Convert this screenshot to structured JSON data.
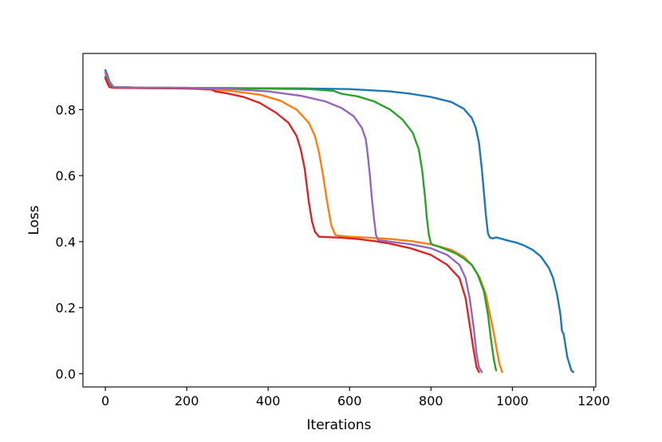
{
  "chart_data": {
    "type": "line",
    "title": "",
    "xlabel": "Iterations",
    "ylabel": "Loss",
    "xlim": [
      -55,
      1205
    ],
    "ylim": [
      -0.04,
      0.97
    ],
    "xticks": [
      0,
      200,
      400,
      600,
      800,
      1000,
      1200
    ],
    "yticks": [
      0.0,
      0.2,
      0.4,
      0.6,
      0.8
    ],
    "xtick_labels": [
      "0",
      "200",
      "400",
      "600",
      "800",
      "1000",
      "1200"
    ],
    "ytick_labels": [
      "0.0",
      "0.2",
      "0.4",
      "0.6",
      "0.8"
    ],
    "grid": false,
    "legend": "none",
    "series": [
      {
        "color": "#1f77b4",
        "points": [
          [
            0,
            0.92
          ],
          [
            5,
            0.905
          ],
          [
            10,
            0.885
          ],
          [
            20,
            0.868
          ],
          [
            100,
            0.866
          ],
          [
            300,
            0.865
          ],
          [
            500,
            0.864
          ],
          [
            600,
            0.862
          ],
          [
            700,
            0.855
          ],
          [
            750,
            0.848
          ],
          [
            800,
            0.838
          ],
          [
            850,
            0.823
          ],
          [
            880,
            0.803
          ],
          [
            900,
            0.775
          ],
          [
            910,
            0.745
          ],
          [
            918,
            0.7
          ],
          [
            925,
            0.62
          ],
          [
            930,
            0.55
          ],
          [
            935,
            0.48
          ],
          [
            940,
            0.425
          ],
          [
            945,
            0.412
          ],
          [
            952,
            0.41
          ],
          [
            960,
            0.413
          ],
          [
            970,
            0.41
          ],
          [
            990,
            0.403
          ],
          [
            1010,
            0.397
          ],
          [
            1030,
            0.388
          ],
          [
            1050,
            0.375
          ],
          [
            1070,
            0.355
          ],
          [
            1090,
            0.32
          ],
          [
            1100,
            0.29
          ],
          [
            1110,
            0.24
          ],
          [
            1118,
            0.18
          ],
          [
            1122,
            0.13
          ],
          [
            1126,
            0.12
          ],
          [
            1130,
            0.09
          ],
          [
            1135,
            0.05
          ],
          [
            1140,
            0.03
          ],
          [
            1145,
            0.01
          ],
          [
            1150,
            0.005
          ]
        ]
      },
      {
        "color": "#ff7f0e",
        "points": [
          [
            0,
            0.91
          ],
          [
            5,
            0.895
          ],
          [
            10,
            0.875
          ],
          [
            20,
            0.866
          ],
          [
            100,
            0.865
          ],
          [
            200,
            0.864
          ],
          [
            300,
            0.858
          ],
          [
            380,
            0.845
          ],
          [
            430,
            0.827
          ],
          [
            470,
            0.8
          ],
          [
            500,
            0.76
          ],
          [
            515,
            0.72
          ],
          [
            525,
            0.67
          ],
          [
            535,
            0.6
          ],
          [
            545,
            0.52
          ],
          [
            555,
            0.45
          ],
          [
            565,
            0.42
          ],
          [
            575,
            0.418
          ],
          [
            600,
            0.415
          ],
          [
            650,
            0.412
          ],
          [
            700,
            0.408
          ],
          [
            750,
            0.402
          ],
          [
            800,
            0.392
          ],
          [
            850,
            0.375
          ],
          [
            880,
            0.355
          ],
          [
            900,
            0.33
          ],
          [
            920,
            0.29
          ],
          [
            935,
            0.24
          ],
          [
            945,
            0.18
          ],
          [
            955,
            0.12
          ],
          [
            962,
            0.07
          ],
          [
            968,
            0.03
          ],
          [
            975,
            0.005
          ]
        ]
      },
      {
        "color": "#2ca02c",
        "points": [
          [
            0,
            0.9
          ],
          [
            5,
            0.89
          ],
          [
            10,
            0.878
          ],
          [
            20,
            0.868
          ],
          [
            100,
            0.866
          ],
          [
            300,
            0.865
          ],
          [
            500,
            0.862
          ],
          [
            560,
            0.857
          ],
          [
            580,
            0.848
          ],
          [
            620,
            0.84
          ],
          [
            660,
            0.825
          ],
          [
            700,
            0.8
          ],
          [
            730,
            0.77
          ],
          [
            755,
            0.73
          ],
          [
            770,
            0.68
          ],
          [
            778,
            0.62
          ],
          [
            785,
            0.54
          ],
          [
            790,
            0.47
          ],
          [
            795,
            0.42
          ],
          [
            800,
            0.395
          ],
          [
            805,
            0.39
          ],
          [
            820,
            0.385
          ],
          [
            840,
            0.375
          ],
          [
            860,
            0.365
          ],
          [
            880,
            0.35
          ],
          [
            900,
            0.33
          ],
          [
            915,
            0.3
          ],
          [
            930,
            0.25
          ],
          [
            940,
            0.18
          ],
          [
            948,
            0.1
          ],
          [
            955,
            0.04
          ],
          [
            960,
            0.01
          ]
        ]
      },
      {
        "color": "#d62728",
        "points": [
          [
            0,
            0.895
          ],
          [
            5,
            0.88
          ],
          [
            10,
            0.868
          ],
          [
            20,
            0.866
          ],
          [
            100,
            0.865
          ],
          [
            200,
            0.864
          ],
          [
            260,
            0.862
          ],
          [
            270,
            0.855
          ],
          [
            300,
            0.849
          ],
          [
            340,
            0.838
          ],
          [
            380,
            0.82
          ],
          [
            420,
            0.79
          ],
          [
            450,
            0.76
          ],
          [
            470,
            0.72
          ],
          [
            480,
            0.68
          ],
          [
            490,
            0.62
          ],
          [
            500,
            0.52
          ],
          [
            508,
            0.46
          ],
          [
            515,
            0.43
          ],
          [
            525,
            0.415
          ],
          [
            540,
            0.414
          ],
          [
            580,
            0.412
          ],
          [
            620,
            0.408
          ],
          [
            660,
            0.402
          ],
          [
            700,
            0.394
          ],
          [
            750,
            0.38
          ],
          [
            800,
            0.36
          ],
          [
            840,
            0.33
          ],
          [
            870,
            0.29
          ],
          [
            885,
            0.23
          ],
          [
            895,
            0.15
          ],
          [
            905,
            0.07
          ],
          [
            912,
            0.02
          ],
          [
            918,
            0.005
          ]
        ]
      },
      {
        "color": "#9467bd",
        "points": [
          [
            0,
            0.915
          ],
          [
            5,
            0.9
          ],
          [
            10,
            0.882
          ],
          [
            20,
            0.868
          ],
          [
            100,
            0.866
          ],
          [
            200,
            0.866
          ],
          [
            300,
            0.863
          ],
          [
            400,
            0.855
          ],
          [
            480,
            0.842
          ],
          [
            540,
            0.825
          ],
          [
            580,
            0.805
          ],
          [
            610,
            0.78
          ],
          [
            630,
            0.745
          ],
          [
            640,
            0.71
          ],
          [
            645,
            0.66
          ],
          [
            650,
            0.6
          ],
          [
            655,
            0.53
          ],
          [
            660,
            0.47
          ],
          [
            665,
            0.42
          ],
          [
            670,
            0.405
          ],
          [
            700,
            0.4
          ],
          [
            750,
            0.392
          ],
          [
            800,
            0.38
          ],
          [
            840,
            0.36
          ],
          [
            870,
            0.33
          ],
          [
            885,
            0.29
          ],
          [
            895,
            0.23
          ],
          [
            905,
            0.14
          ],
          [
            912,
            0.06
          ],
          [
            918,
            0.02
          ],
          [
            925,
            0.005
          ]
        ]
      }
    ]
  }
}
